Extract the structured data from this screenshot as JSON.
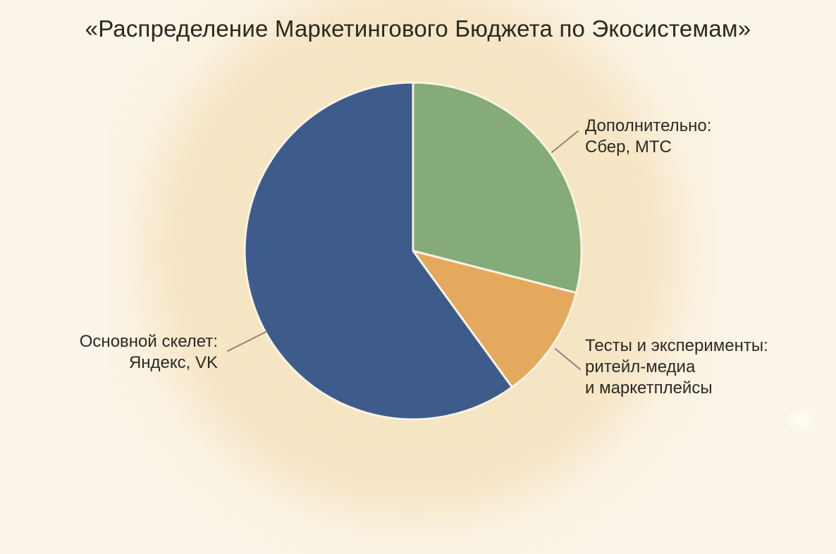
{
  "chart_data": {
    "type": "pie",
    "title": "«Распределение Маркетингового Бюджета по Экосистемам»",
    "legend": "none",
    "values_unit": "percent (estimated from slice angles, not printed on chart)",
    "start_angle": "12 o'clock",
    "direction": "clockwise",
    "slices": [
      {
        "name": "Дополнительно: Сбер, МТС",
        "value": 29,
        "color": "#85ab78",
        "label_lines": [
          "Дополнительно:",
          "Сбер, МТС"
        ]
      },
      {
        "name": "Тесты и эксперименты: ритейл-медиа и маркетплейсы",
        "value": 11,
        "color": "#e4a95c",
        "label_lines": [
          "Тесты и эксперименты:",
          "ритейл-медиа",
          "и маркетплейсы"
        ]
      },
      {
        "name": "Основной скелет: Яндекс, VK",
        "value": 60,
        "color": "#3d5c8b",
        "label_lines": [
          "Основной скелет:",
          "Яндекс, VK"
        ]
      }
    ]
  },
  "colors": {
    "background": "#fbf5e9",
    "glow": "#f6e3be",
    "slice_divider": "#f8f3e2",
    "leader_line": "#8d8478",
    "text": "#2a2924"
  }
}
